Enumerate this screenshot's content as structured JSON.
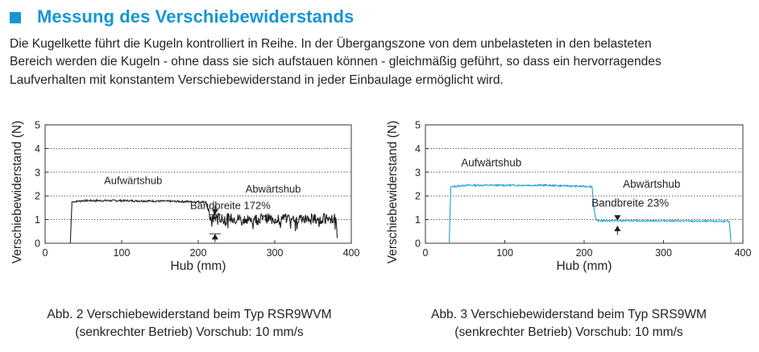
{
  "section": {
    "title": "Messung des Verschiebewiderstands",
    "accent_color": "#1596d2",
    "icon": "square-bullet-icon"
  },
  "intro_lines": [
    "Die Kugelkette führt die Kugeln kontrolliert in Reihe. In der Übergangszone von dem unbelasteten in den belasteten",
    "Bereich werden die Kugeln - ohne dass sie sich aufstauen können - gleichmäßig geführt, so dass ein hervorragendes",
    "Laufverhalten mit konstantem Verschiebewiderstand in jeder Einbaulage ermöglicht wird."
  ],
  "chart_data": [
    {
      "type": "line",
      "title": "",
      "xlabel": "Hub (mm)",
      "ylabel": "Verschiebewiderstand (N)",
      "xlim": [
        0,
        400
      ],
      "ylim": [
        0,
        5
      ],
      "xticks": [
        0,
        100,
        200,
        300,
        400
      ],
      "yticks": [
        0,
        1,
        2,
        3,
        4,
        5
      ],
      "grid": "horizontal dotted",
      "line_color": "#231f20",
      "series": [
        {
          "x": [
            33,
            35,
            50,
            100,
            150,
            200,
            210,
            212,
            214,
            216,
            250,
            300,
            350,
            375,
            380,
            382
          ],
          "y": [
            0,
            1.75,
            1.8,
            1.8,
            1.78,
            1.75,
            1.75,
            1.5,
            1.2,
            1.1,
            1.05,
            1.05,
            1.05,
            1.05,
            1.1,
            0
          ]
        }
      ],
      "annotations": [
        {
          "text": "Aufwärtshub",
          "x": 115,
          "y": 2.5
        },
        {
          "text": "Abwärtshub",
          "x": 298,
          "y": 2.15
        },
        {
          "text": "Bandbreite 172%",
          "x": 242,
          "y": 1.45
        }
      ],
      "caption_lines": [
        "Abb. 2 Verschiebewiderstand beim Typ RSR9WVM",
        "(senkrechter Betrieb) Vorschub: 10 mm/s"
      ]
    },
    {
      "type": "line",
      "title": "",
      "xlabel": "Hub (mm)",
      "ylabel": "Verschiebewiderstand (N)",
      "xlim": [
        0,
        400
      ],
      "ylim": [
        0,
        5
      ],
      "xticks": [
        0,
        100,
        200,
        300,
        400
      ],
      "yticks": [
        0,
        1,
        2,
        3,
        4,
        5
      ],
      "grid": "horizontal dotted",
      "line_color": "#1ea0d4",
      "series": [
        {
          "x": [
            30,
            32,
            50,
            100,
            150,
            200,
            210,
            212,
            214,
            216,
            250,
            300,
            350,
            380,
            383,
            385
          ],
          "y": [
            0,
            2.38,
            2.45,
            2.45,
            2.45,
            2.4,
            2.4,
            1.6,
            1.1,
            0.95,
            0.95,
            0.95,
            0.93,
            0.93,
            0.92,
            0
          ]
        }
      ],
      "annotations": [
        {
          "text": "Aufwärtshub",
          "x": 83,
          "y": 3.25
        },
        {
          "text": "Abwärtshub",
          "x": 285,
          "y": 2.35
        },
        {
          "text": "Bandbreite 23%",
          "x": 258,
          "y": 1.55
        }
      ],
      "caption_lines": [
        "Abb. 3 Verschiebewiderstand beim Typ SRS9WM",
        "(senkrechter Betrieb) Vorschub: 10 mm/s"
      ]
    }
  ]
}
